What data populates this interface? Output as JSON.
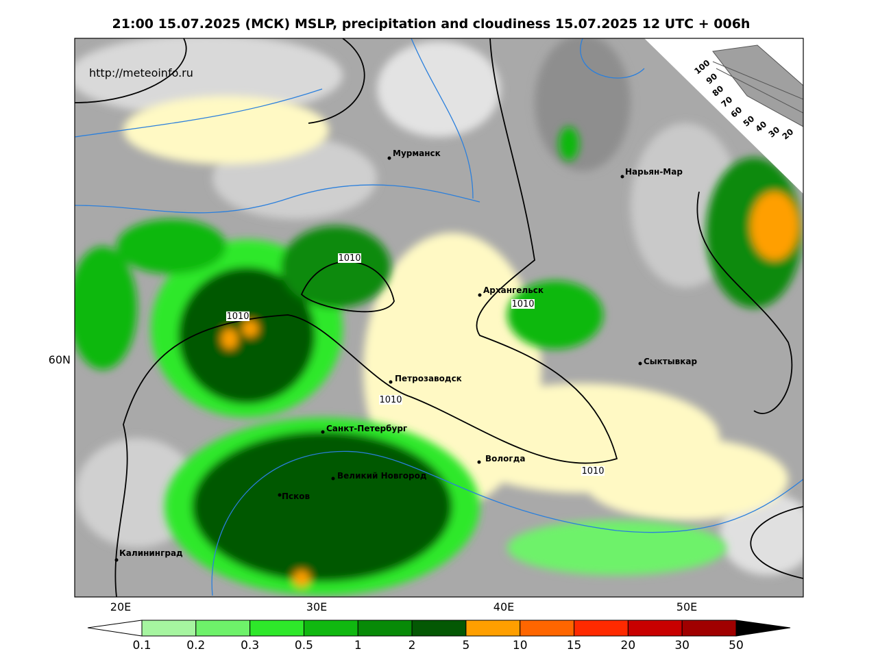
{
  "title": "21:00 15.07.2025 (МСК) MSLP, precipitation and cloudiness 15.07.2025 12 UTC + 006h",
  "url": "http://meteoinfo.ru",
  "axes": {
    "lon": [
      "20E",
      "30E",
      "40E",
      "50E"
    ],
    "lat": [
      "60N"
    ]
  },
  "cities": [
    "Мурманск",
    "Нарьян-Мар",
    "Архангельск",
    "Сыктывкар",
    "Петрозаводск",
    "Санкт-Петербург",
    "Вологда",
    "Великий Новгород",
    "Псков",
    "Калининград"
  ],
  "isobar_labels": [
    "1010",
    "1010",
    "1010",
    "1010",
    "1010"
  ],
  "precip_scale": {
    "ticks": [
      "0.1",
      "0.2",
      "0.3",
      "0.5",
      "1",
      "2",
      "5",
      "10",
      "15",
      "20",
      "30",
      "50"
    ]
  },
  "cloud_scale": {
    "ticks": [
      "100",
      "90",
      "80",
      "70",
      "60",
      "50",
      "40",
      "30",
      "20"
    ]
  }
}
